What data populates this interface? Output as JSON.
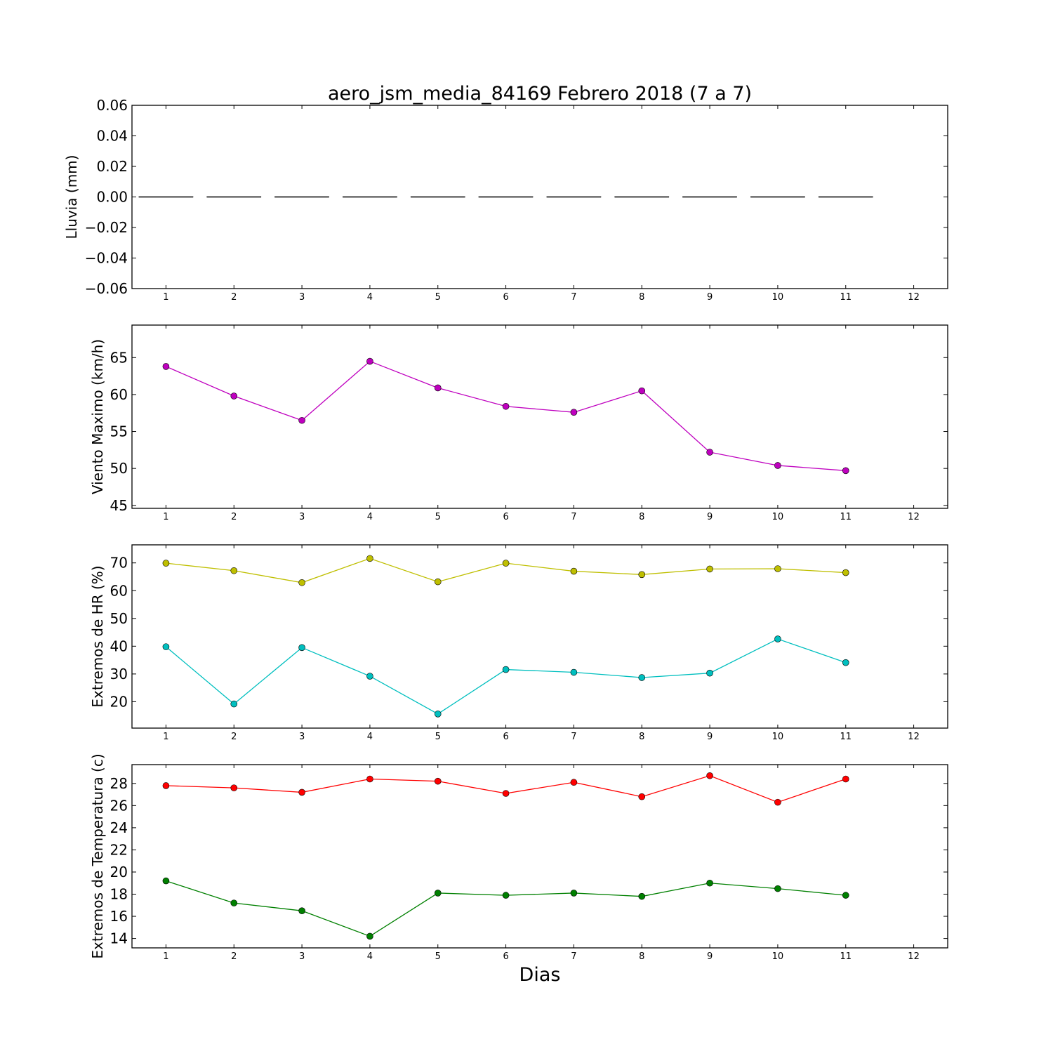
{
  "figure": {
    "title": "aero_jsm_media_84169 Febrero 2018  (7 a 7)",
    "xlabel": "Dias"
  },
  "chart_data": [
    {
      "type": "bar",
      "ylabel": "Lluvia (mm)",
      "xlim": [
        0.5,
        12.5
      ],
      "ylim": [
        -0.06,
        0.06
      ],
      "xticks": [
        1,
        2,
        3,
        4,
        5,
        6,
        7,
        8,
        9,
        10,
        11,
        12
      ],
      "yticks": [
        "−0.06",
        "−0.04",
        "−0.02",
        "0.00",
        "0.02",
        "0.04",
        "0.06"
      ],
      "yticks_values": [
        -0.06,
        -0.04,
        -0.02,
        0.0,
        0.02,
        0.04,
        0.06
      ],
      "bar_width": 0.8,
      "series": [
        {
          "color": "#000000",
          "x": [
            1,
            2,
            3,
            4,
            5,
            6,
            7,
            8,
            9,
            10,
            11
          ],
          "values": [
            0,
            0,
            0,
            0,
            0,
            0,
            0,
            0,
            0,
            0,
            0
          ]
        }
      ]
    },
    {
      "type": "line",
      "ylabel": "Viento Maximo (km/h)",
      "xlim": [
        0.5,
        12.5
      ],
      "ylim": [
        44.6,
        69.4
      ],
      "xticks": [
        1,
        2,
        3,
        4,
        5,
        6,
        7,
        8,
        9,
        10,
        11,
        12
      ],
      "yticks": [
        "45",
        "50",
        "55",
        "60",
        "65"
      ],
      "yticks_values": [
        45,
        50,
        55,
        60,
        65
      ],
      "series": [
        {
          "color": "#bf00bf",
          "x": [
            1,
            2,
            3,
            4,
            5,
            6,
            7,
            8,
            9,
            10,
            11
          ],
          "values": [
            63.8,
            59.8,
            56.5,
            64.5,
            60.9,
            58.4,
            57.6,
            60.5,
            52.2,
            50.4,
            49.7
          ]
        }
      ]
    },
    {
      "type": "line",
      "ylabel": "Extremos de HR (%)",
      "xlim": [
        0.5,
        12.5
      ],
      "ylim": [
        10.5,
        76.5
      ],
      "xticks": [
        1,
        2,
        3,
        4,
        5,
        6,
        7,
        8,
        9,
        10,
        11,
        12
      ],
      "yticks": [
        "20",
        "30",
        "40",
        "50",
        "60",
        "70"
      ],
      "yticks_values": [
        20,
        30,
        40,
        50,
        60,
        70
      ],
      "series": [
        {
          "color": "#bfbf00",
          "x": [
            1,
            2,
            3,
            4,
            5,
            6,
            7,
            8,
            9,
            10,
            11
          ],
          "values": [
            69.9,
            67.2,
            62.9,
            71.6,
            63.2,
            69.9,
            67.0,
            65.8,
            67.8,
            67.9,
            66.5
          ]
        },
        {
          "color": "#00bfbf",
          "x": [
            1,
            2,
            3,
            4,
            5,
            6,
            7,
            8,
            9,
            10,
            11
          ],
          "values": [
            39.8,
            19.2,
            39.5,
            29.2,
            15.6,
            31.6,
            30.6,
            28.7,
            30.3,
            42.6,
            34.1
          ]
        }
      ]
    },
    {
      "type": "line",
      "ylabel": "Extremos de Temperatura (c)",
      "xlim": [
        0.5,
        12.5
      ],
      "ylim": [
        13.15,
        29.7
      ],
      "xticks": [
        1,
        2,
        3,
        4,
        5,
        6,
        7,
        8,
        9,
        10,
        11,
        12
      ],
      "yticks": [
        "14",
        "16",
        "18",
        "20",
        "22",
        "24",
        "26",
        "28"
      ],
      "yticks_values": [
        14,
        16,
        18,
        20,
        22,
        24,
        26,
        28
      ],
      "series": [
        {
          "color": "#ff0000",
          "x": [
            1,
            2,
            3,
            4,
            5,
            6,
            7,
            8,
            9,
            10,
            11
          ],
          "values": [
            27.8,
            27.6,
            27.2,
            28.4,
            28.2,
            27.1,
            28.1,
            26.8,
            28.7,
            26.3,
            28.4
          ]
        },
        {
          "color": "#008000",
          "x": [
            1,
            2,
            3,
            4,
            5,
            6,
            7,
            8,
            9,
            10,
            11
          ],
          "values": [
            19.2,
            17.2,
            16.5,
            14.2,
            18.1,
            17.9,
            18.1,
            17.8,
            19.0,
            18.5,
            17.9
          ]
        }
      ]
    }
  ]
}
